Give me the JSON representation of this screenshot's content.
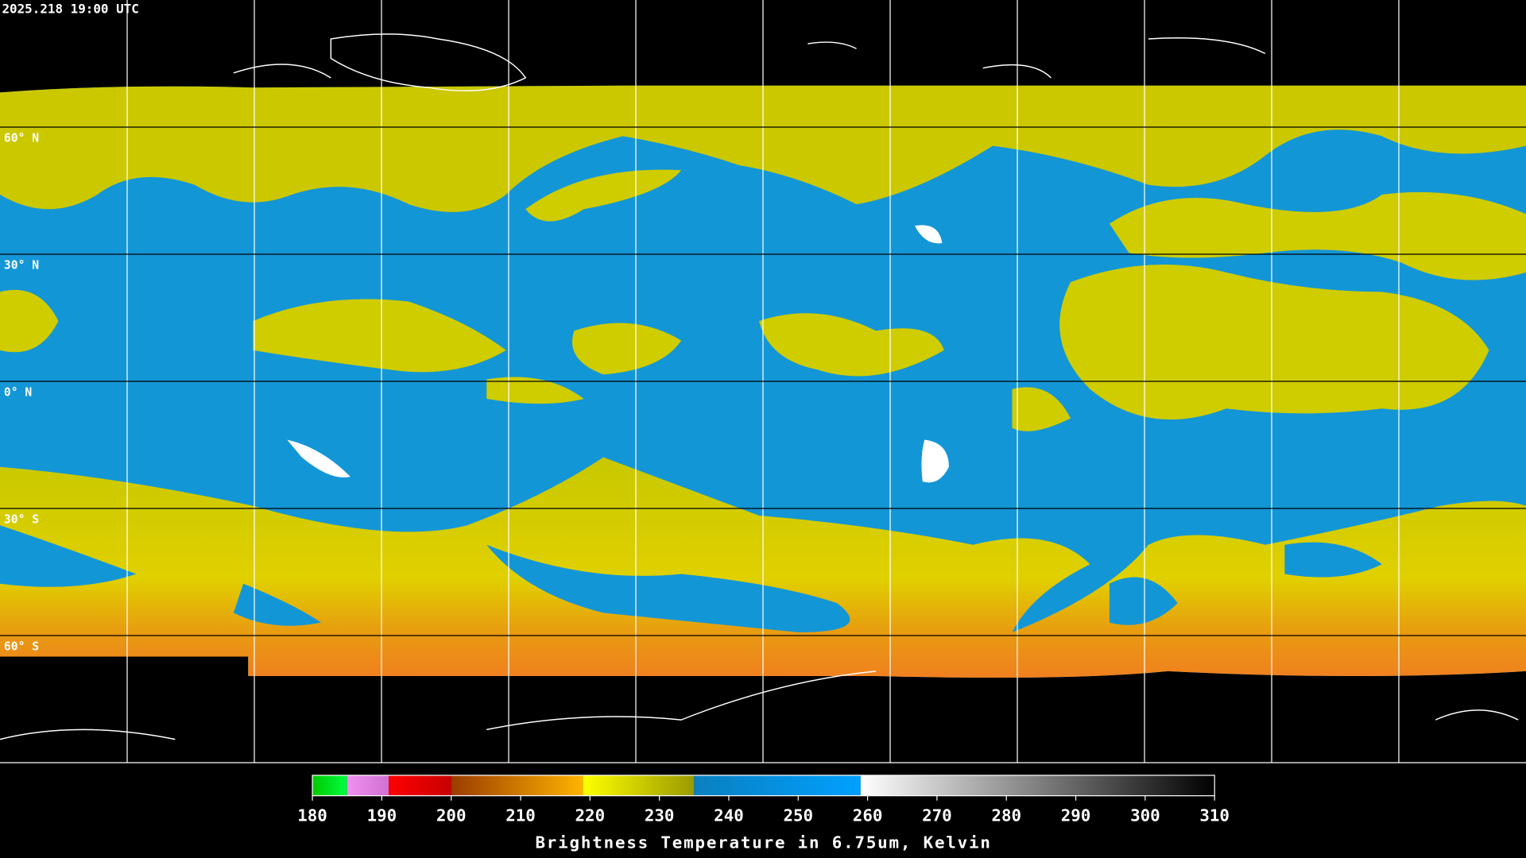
{
  "timestamp": "2025.218 19:00 UTC",
  "lat_lines": [
    {
      "value": 60,
      "label": "60° N"
    },
    {
      "value": 30,
      "label": "30° N"
    },
    {
      "value": 0,
      "label": "0° N"
    },
    {
      "value": -30,
      "label": "30° S"
    },
    {
      "value": -60,
      "label": "60° S"
    }
  ],
  "colorbar": {
    "title": "Brightness Temperature in 6.75um, Kelvin",
    "lim": [
      180,
      310
    ],
    "ticks": [
      180,
      190,
      200,
      210,
      220,
      230,
      240,
      250,
      260,
      270,
      280,
      290,
      300,
      310
    ],
    "segments": [
      {
        "from": 180,
        "to": 185,
        "color_start": "#00c800",
        "color_end": "#00ff40"
      },
      {
        "from": 185,
        "to": 191,
        "color_start": "#f090f0",
        "color_end": "#d070d0"
      },
      {
        "from": 191,
        "to": 200,
        "color_start": "#ff0000",
        "color_end": "#c80000"
      },
      {
        "from": 200,
        "to": 219,
        "color_start": "#9a3c00",
        "color_end": "#ffb400"
      },
      {
        "from": 219,
        "to": 235,
        "color_start": "#ffff00",
        "color_end": "#9a9a00"
      },
      {
        "from": 235,
        "to": 259,
        "color_start": "#0a80c0",
        "color_end": "#00a0ff"
      },
      {
        "from": 259,
        "to": 310,
        "color_start": "#ffffff",
        "color_end": "#000000"
      }
    ]
  }
}
